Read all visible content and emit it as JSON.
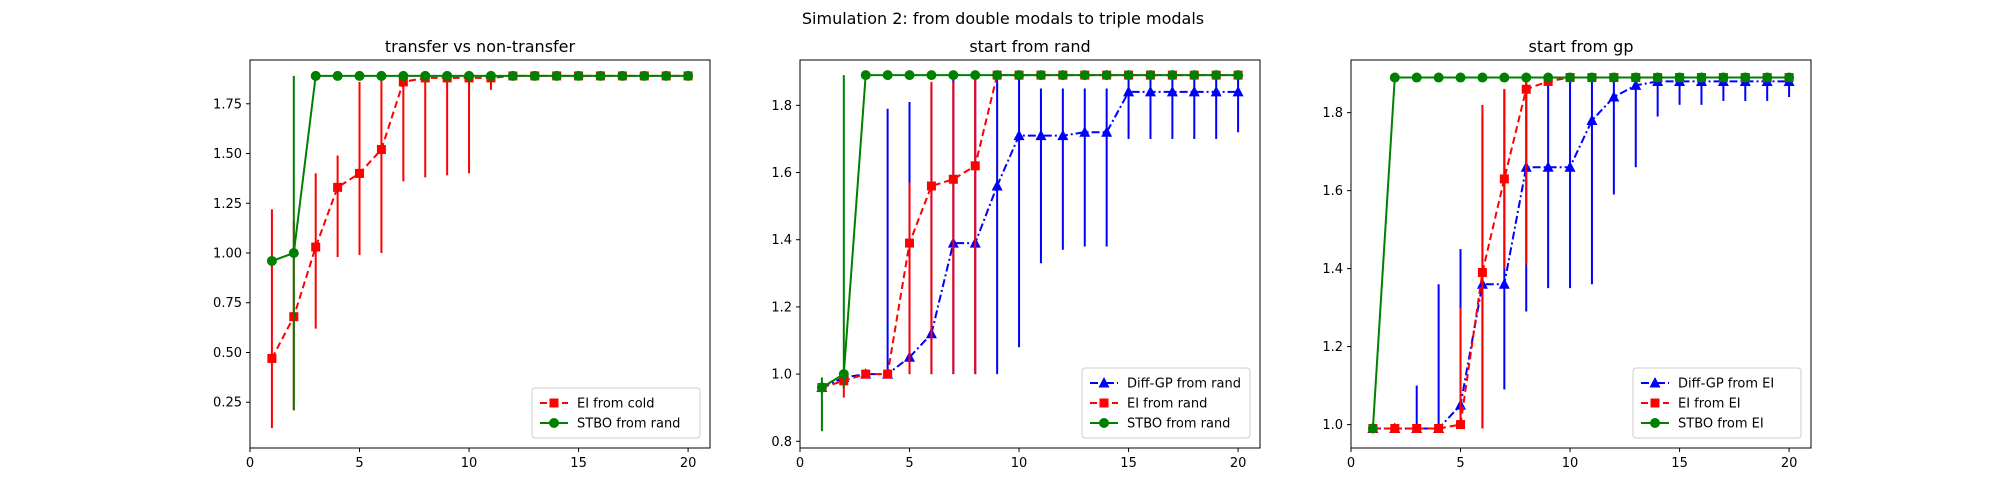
{
  "figure": {
    "suptitle": "Simulation 2: from double modals to triple modals"
  },
  "chart_data": [
    {
      "type": "line",
      "title": "transfer vs non-transfer",
      "xlabel": "",
      "ylabel": "",
      "xlim": [
        0,
        21
      ],
      "ylim": [
        0.02,
        1.97
      ],
      "xticks": [
        0,
        5,
        10,
        15,
        20
      ],
      "xtick_labels": [
        "0",
        "5",
        "10",
        "15",
        "20"
      ],
      "yticks": [
        0.25,
        0.5,
        0.75,
        1.0,
        1.25,
        1.5,
        1.75
      ],
      "ytick_labels": [
        "0.25",
        "0.50",
        "0.75",
        "1.00",
        "1.25",
        "1.50",
        "1.75"
      ],
      "legend_position": "lower right",
      "series": [
        {
          "name": "EI from cold",
          "color": "#ff0000",
          "linestyle": "dashed",
          "marker": "square",
          "x": [
            1,
            2,
            3,
            4,
            5,
            6,
            7,
            8,
            9,
            10,
            11,
            12,
            13,
            14,
            15,
            16,
            17,
            18,
            19,
            20
          ],
          "y": [
            0.47,
            0.68,
            1.03,
            1.33,
            1.4,
            1.52,
            1.86,
            1.88,
            1.88,
            1.88,
            1.88,
            1.89,
            1.89,
            1.89,
            1.89,
            1.89,
            1.89,
            1.89,
            1.89,
            1.89
          ],
          "err_low": [
            0.12,
            0.21,
            0.62,
            0.98,
            0.99,
            1.0,
            1.36,
            1.38,
            1.39,
            1.4,
            1.82,
            1.89,
            1.89,
            1.89,
            1.89,
            1.89,
            1.89,
            1.89,
            1.89,
            1.89
          ],
          "err_high": [
            1.22,
            1.16,
            1.4,
            1.49,
            1.86,
            1.89,
            1.89,
            1.89,
            1.89,
            1.89,
            1.89,
            1.89,
            1.89,
            1.89,
            1.89,
            1.89,
            1.89,
            1.89,
            1.89,
            1.89
          ]
        },
        {
          "name": "STBO from rand",
          "color": "#008000",
          "linestyle": "solid",
          "marker": "circle",
          "x": [
            1,
            2,
            3,
            4,
            5,
            6,
            7,
            8,
            9,
            10,
            11,
            12,
            13,
            14,
            15,
            16,
            17,
            18,
            19,
            20
          ],
          "y": [
            0.96,
            1.0,
            1.89,
            1.89,
            1.89,
            1.89,
            1.89,
            1.89,
            1.89,
            1.89,
            1.89,
            1.89,
            1.89,
            1.89,
            1.89,
            1.89,
            1.89,
            1.89,
            1.89,
            1.89
          ],
          "err_low": [
            0.96,
            0.21,
            1.89,
            1.89,
            1.89,
            1.89,
            1.89,
            1.89,
            1.89,
            1.89,
            1.89,
            1.89,
            1.89,
            1.89,
            1.89,
            1.89,
            1.89,
            1.89,
            1.89,
            1.89
          ],
          "err_high": [
            0.96,
            1.89,
            1.89,
            1.89,
            1.89,
            1.89,
            1.89,
            1.89,
            1.89,
            1.89,
            1.89,
            1.89,
            1.89,
            1.89,
            1.89,
            1.89,
            1.89,
            1.89,
            1.89,
            1.89
          ]
        }
      ]
    },
    {
      "type": "line",
      "title": "start from rand",
      "xlabel": "",
      "ylabel": "",
      "xlim": [
        0,
        21
      ],
      "ylim": [
        0.78,
        1.935
      ],
      "xticks": [
        0,
        5,
        10,
        15,
        20
      ],
      "xtick_labels": [
        "0",
        "5",
        "10",
        "15",
        "20"
      ],
      "yticks": [
        0.8,
        1.0,
        1.2,
        1.4,
        1.6,
        1.8
      ],
      "ytick_labels": [
        "0.8",
        "1.0",
        "1.2",
        "1.4",
        "1.6",
        "1.8"
      ],
      "legend_position": "lower right",
      "series": [
        {
          "name": "Diff-GP from rand",
          "color": "#0000ff",
          "linestyle": "dashdot",
          "marker": "triangle",
          "x": [
            1,
            2,
            3,
            4,
            5,
            6,
            7,
            8,
            9,
            10,
            11,
            12,
            13,
            14,
            15,
            16,
            17,
            18,
            19,
            20
          ],
          "y": [
            0.96,
            0.99,
            1.0,
            1.0,
            1.05,
            1.12,
            1.39,
            1.39,
            1.56,
            1.71,
            1.71,
            1.71,
            1.72,
            1.72,
            1.84,
            1.84,
            1.84,
            1.84,
            1.84,
            1.84
          ],
          "err_low": [
            0.96,
            0.99,
            1.0,
            1.0,
            1.0,
            1.0,
            1.0,
            1.0,
            1.0,
            1.08,
            1.33,
            1.37,
            1.38,
            1.38,
            1.7,
            1.7,
            1.7,
            1.7,
            1.7,
            1.72
          ],
          "err_high": [
            0.96,
            0.99,
            1.0,
            1.79,
            1.81,
            1.86,
            1.89,
            1.89,
            1.89,
            1.89,
            1.85,
            1.85,
            1.85,
            1.85,
            1.89,
            1.89,
            1.89,
            1.89,
            1.89,
            1.89
          ]
        },
        {
          "name": "EI from rand",
          "color": "#ff0000",
          "linestyle": "dashed",
          "marker": "square",
          "x": [
            1,
            2,
            3,
            4,
            5,
            6,
            7,
            8,
            9,
            10,
            11,
            12,
            13,
            14,
            15,
            16,
            17,
            18,
            19,
            20
          ],
          "y": [
            0.96,
            0.98,
            1.0,
            1.0,
            1.39,
            1.56,
            1.58,
            1.62,
            1.89,
            1.89,
            1.89,
            1.89,
            1.89,
            1.89,
            1.89,
            1.89,
            1.89,
            1.89,
            1.89,
            1.89
          ],
          "err_low": [
            0.96,
            0.93,
            1.0,
            1.0,
            1.0,
            1.0,
            1.0,
            1.0,
            1.89,
            1.89,
            1.89,
            1.89,
            1.89,
            1.89,
            1.89,
            1.89,
            1.89,
            1.89,
            1.89,
            1.89
          ],
          "err_high": [
            0.96,
            1.01,
            1.0,
            1.0,
            1.57,
            1.87,
            1.87,
            1.89,
            1.89,
            1.89,
            1.89,
            1.89,
            1.89,
            1.89,
            1.89,
            1.89,
            1.89,
            1.89,
            1.89,
            1.89
          ]
        },
        {
          "name": "STBO from rand",
          "color": "#008000",
          "linestyle": "solid",
          "marker": "circle",
          "x": [
            1,
            2,
            3,
            4,
            5,
            6,
            7,
            8,
            9,
            10,
            11,
            12,
            13,
            14,
            15,
            16,
            17,
            18,
            19,
            20
          ],
          "y": [
            0.96,
            1.0,
            1.89,
            1.89,
            1.89,
            1.89,
            1.89,
            1.89,
            1.89,
            1.89,
            1.89,
            1.89,
            1.89,
            1.89,
            1.89,
            1.89,
            1.89,
            1.89,
            1.89,
            1.89
          ],
          "err_low": [
            0.83,
            0.96,
            1.89,
            1.89,
            1.89,
            1.89,
            1.89,
            1.89,
            1.89,
            1.89,
            1.89,
            1.89,
            1.89,
            1.89,
            1.89,
            1.89,
            1.89,
            1.89,
            1.89,
            1.89
          ],
          "err_high": [
            0.99,
            1.89,
            1.89,
            1.89,
            1.89,
            1.89,
            1.89,
            1.89,
            1.89,
            1.89,
            1.89,
            1.89,
            1.89,
            1.89,
            1.89,
            1.89,
            1.89,
            1.89,
            1.89,
            1.89
          ]
        }
      ]
    },
    {
      "type": "line",
      "title": "start from gp",
      "xlabel": "",
      "ylabel": "",
      "xlim": [
        0,
        21
      ],
      "ylim": [
        0.94,
        1.935
      ],
      "xticks": [
        0,
        5,
        10,
        15,
        20
      ],
      "xtick_labels": [
        "0",
        "5",
        "10",
        "15",
        "20"
      ],
      "yticks": [
        1.0,
        1.2,
        1.4,
        1.6,
        1.8
      ],
      "ytick_labels": [
        "1.0",
        "1.2",
        "1.4",
        "1.6",
        "1.8"
      ],
      "legend_position": "lower right",
      "series": [
        {
          "name": "Diff-GP from EI",
          "color": "#0000ff",
          "linestyle": "dashdot",
          "marker": "triangle",
          "x": [
            1,
            2,
            3,
            4,
            5,
            6,
            7,
            8,
            9,
            10,
            11,
            12,
            13,
            14,
            15,
            16,
            17,
            18,
            19,
            20
          ],
          "y": [
            0.99,
            0.99,
            0.99,
            0.99,
            1.05,
            1.36,
            1.36,
            1.66,
            1.66,
            1.66,
            1.78,
            1.84,
            1.87,
            1.88,
            1.88,
            1.88,
            1.88,
            1.88,
            1.88,
            1.88
          ],
          "err_low": [
            0.99,
            0.99,
            0.99,
            0.99,
            0.99,
            0.99,
            1.09,
            1.29,
            1.35,
            1.35,
            1.36,
            1.59,
            1.66,
            1.79,
            1.82,
            1.82,
            1.83,
            1.83,
            1.83,
            1.84
          ],
          "err_high": [
            0.99,
            0.99,
            1.1,
            1.36,
            1.45,
            1.79,
            1.86,
            1.89,
            1.89,
            1.89,
            1.89,
            1.89,
            1.89,
            1.89,
            1.89,
            1.89,
            1.89,
            1.89,
            1.89,
            1.89
          ]
        },
        {
          "name": "EI from EI",
          "color": "#ff0000",
          "linestyle": "dashed",
          "marker": "square",
          "x": [
            1,
            2,
            3,
            4,
            5,
            6,
            7,
            8,
            9,
            10,
            11,
            12,
            13,
            14,
            15,
            16,
            17,
            18,
            19,
            20
          ],
          "y": [
            0.99,
            0.99,
            0.99,
            0.99,
            1.0,
            1.39,
            1.63,
            1.86,
            1.88,
            1.89,
            1.89,
            1.89,
            1.89,
            1.89,
            1.89,
            1.89,
            1.89,
            1.89,
            1.89,
            1.89
          ],
          "err_low": [
            0.99,
            0.99,
            0.99,
            0.99,
            0.99,
            0.99,
            1.4,
            1.41,
            1.88,
            1.89,
            1.89,
            1.89,
            1.89,
            1.89,
            1.89,
            1.89,
            1.89,
            1.89,
            1.89,
            1.89
          ],
          "err_high": [
            0.99,
            0.99,
            0.99,
            0.99,
            1.3,
            1.82,
            1.86,
            1.89,
            1.89,
            1.89,
            1.89,
            1.89,
            1.89,
            1.89,
            1.89,
            1.89,
            1.89,
            1.89,
            1.89,
            1.89
          ]
        },
        {
          "name": "STBO from EI",
          "color": "#008000",
          "linestyle": "solid",
          "marker": "circle",
          "x": [
            1,
            2,
            3,
            4,
            5,
            6,
            7,
            8,
            9,
            10,
            11,
            12,
            13,
            14,
            15,
            16,
            17,
            18,
            19,
            20
          ],
          "y": [
            0.99,
            1.89,
            1.89,
            1.89,
            1.89,
            1.89,
            1.89,
            1.89,
            1.89,
            1.89,
            1.89,
            1.89,
            1.89,
            1.89,
            1.89,
            1.89,
            1.89,
            1.89,
            1.89,
            1.89
          ],
          "err_low": [
            0.99,
            1.89,
            1.89,
            1.89,
            1.89,
            1.89,
            1.89,
            1.89,
            1.89,
            1.89,
            1.89,
            1.89,
            1.89,
            1.89,
            1.89,
            1.89,
            1.89,
            1.89,
            1.89,
            1.89
          ],
          "err_high": [
            0.99,
            1.89,
            1.89,
            1.89,
            1.89,
            1.89,
            1.89,
            1.89,
            1.89,
            1.89,
            1.89,
            1.89,
            1.89,
            1.89,
            1.89,
            1.89,
            1.89,
            1.89,
            1.89,
            1.89
          ]
        }
      ]
    }
  ]
}
